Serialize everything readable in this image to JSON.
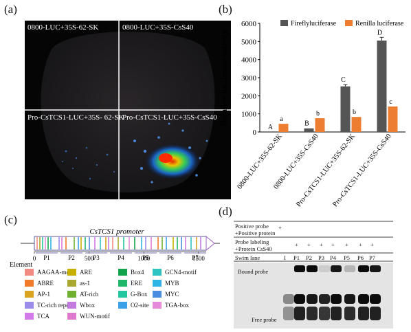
{
  "panels": {
    "a": "(a)",
    "b": "(b)",
    "c": "(c)",
    "d": "(d)"
  },
  "panel_a": {
    "top_left": "0800-LUC+35S-62-SK",
    "top_right": "0800-LUC+35S-CsS40",
    "bottom_left": "Pro-CsTCS1-LUC+35S- 62-SK",
    "bottom_right": "Pro-CsTCS1-LUC+35S-CsS40"
  },
  "chart_data": {
    "type": "bar",
    "title": "",
    "xlabel": "",
    "ylabel": "Relative luciferase activity",
    "ylim": [
      0,
      6000
    ],
    "yticks": [
      "0",
      "1000",
      "2000",
      "3000",
      "4000",
      "5000",
      "6000"
    ],
    "categories": [
      "0800-LUC+35S-62-SK",
      "0800-LUC+35S-CsS40",
      "Pro-CsTCS1-LUC+35S-62-SK",
      "Pro-CsTCS1-LUC+35S-CsS40"
    ],
    "series": [
      {
        "name": "Fireflyluciferase",
        "color": "#555555",
        "values": [
          0,
          200,
          2520,
          5050
        ],
        "errors": [
          0,
          0,
          100,
          180
        ],
        "letters": [
          "A",
          "B",
          "C",
          "D"
        ]
      },
      {
        "name": "Renilla luciferase",
        "color": "#ed7d31",
        "values": [
          450,
          760,
          830,
          1410
        ],
        "errors": [
          0,
          0,
          0,
          0
        ],
        "letters": [
          "a",
          "b",
          "b",
          "c"
        ]
      }
    ],
    "legend": "top"
  },
  "panel_c": {
    "promoter_title": "CsTCS1 promoter",
    "segments": [
      "P1",
      "P2",
      "P3",
      "P4",
      "P5",
      "P6",
      "P7"
    ],
    "axis_ticks": [
      "0",
      "500",
      "1000",
      "1500"
    ],
    "element_heading": "Element",
    "elements": [
      {
        "name": "AAGAA-motif",
        "color": "#f28b82"
      },
      {
        "name": "ARE",
        "color": "#c7b000"
      },
      {
        "name": "Box4",
        "color": "#10a34a"
      },
      {
        "name": "GCN4-motif",
        "color": "#2ec4c4"
      },
      {
        "name": "ABRE",
        "color": "#f07a2a"
      },
      {
        "name": "as-1",
        "color": "#a8a830"
      },
      {
        "name": "ERE",
        "color": "#1fb86a"
      },
      {
        "name": "MYB",
        "color": "#2fb4e6"
      },
      {
        "name": "AP-1",
        "color": "#d9a420"
      },
      {
        "name": "AT-rich",
        "color": "#70b030"
      },
      {
        "name": "G-Box",
        "color": "#22c7a0"
      },
      {
        "name": "MYC",
        "color": "#4a8ce0"
      },
      {
        "name": "TC-rich repeats",
        "color": "#9a8ce8"
      },
      {
        "name": "Wbox",
        "color": "#c27ae0"
      },
      {
        "name": "O2-site",
        "color": "#3aa0e8"
      },
      {
        "name": "TGA-box",
        "color": "#e48ad8"
      },
      {
        "name": "TCA",
        "color": "#d17ae8"
      },
      {
        "name": "WUN-motif",
        "color": "#e07ad0"
      }
    ]
  },
  "panel_d": {
    "row1_label": "Positive probe\n+Positive protein",
    "row1_marks": [
      "+"
    ],
    "row2_label": "Probe labeling\n+Protein CsS40",
    "row2_marks": [
      "+",
      "+",
      "+",
      "+",
      "+",
      "+",
      "+"
    ],
    "swim_lane_label": "Swim lane",
    "lanes": [
      "I",
      "P1",
      "P2",
      "P3",
      "P4",
      "P5",
      "P6",
      "P7"
    ],
    "bound_label": "Bound probe",
    "free_label": "Free probe"
  }
}
